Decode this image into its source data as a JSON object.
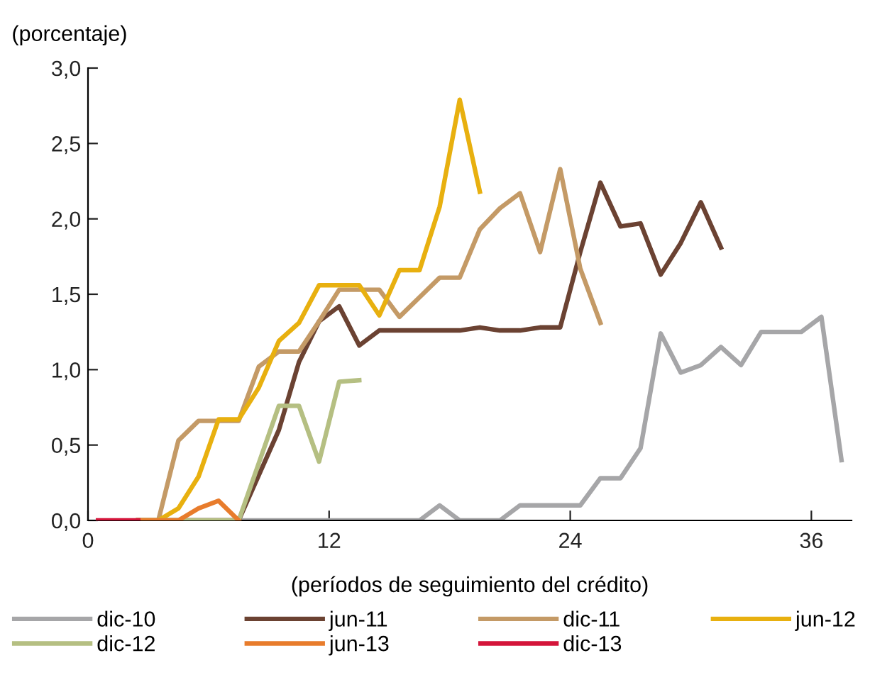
{
  "chart_data": {
    "type": "line",
    "ylabel": "(porcentaje)",
    "xlabel": "(períodos de seguimiento del crédito)",
    "x": [
      0.5,
      1.5,
      2.5,
      3.5,
      4.5,
      5.5,
      6.5,
      7.5,
      8.5,
      9.5,
      10.5,
      11.5,
      12.5,
      13.5,
      14.5,
      15.5,
      16.5,
      17.5,
      18.5,
      19.5,
      20.5,
      21.5,
      22.5,
      23.5,
      24.5,
      25.5,
      26.5,
      27.5,
      28.5,
      29.5,
      30.5,
      31.5,
      32.5,
      33.5,
      34.5,
      35.5,
      36.5,
      37.5
    ],
    "xlim": [
      0,
      38
    ],
    "xticks": [
      0,
      12,
      24,
      36
    ],
    "ylim": [
      0,
      3
    ],
    "yticks": [
      {
        "value": 0,
        "label": "0,0"
      },
      {
        "value": 0.5,
        "label": "0,5"
      },
      {
        "value": 1,
        "label": "1,0"
      },
      {
        "value": 1.5,
        "label": "1,5"
      },
      {
        "value": 2,
        "label": "2,0"
      },
      {
        "value": 2.5,
        "label": "2,5"
      },
      {
        "value": 3,
        "label": "3,0"
      }
    ],
    "grid": false,
    "legend": "bottom",
    "line_style": "solid",
    "marker": "none",
    "series": [
      {
        "name": "dic-10",
        "color": "#a6a6a8",
        "values": [
          null,
          null,
          0,
          0,
          0,
          0,
          0,
          0,
          0,
          0,
          0,
          0,
          0,
          0,
          0,
          0,
          0,
          0.1,
          0,
          0,
          0,
          0.1,
          0.1,
          0.1,
          0.1,
          0.28,
          0.28,
          0.48,
          1.24,
          0.98,
          1.03,
          1.15,
          1.03,
          1.25,
          1.25,
          1.25,
          1.35,
          0.4
        ]
      },
      {
        "name": "jun-11",
        "color": "#6b4232",
        "values": [
          null,
          null,
          0,
          0,
          0,
          0,
          0,
          0,
          0.3,
          0.6,
          1.05,
          1.32,
          1.42,
          1.16,
          1.26,
          1.26,
          1.26,
          1.26,
          1.26,
          1.28,
          1.26,
          1.26,
          1.28,
          1.28,
          1.78,
          2.24,
          1.95,
          1.97,
          1.63,
          1.84,
          2.11,
          1.81,
          null,
          null,
          null,
          null,
          null,
          null
        ]
      },
      {
        "name": "dic-11",
        "color": "#c49a66",
        "values": [
          null,
          null,
          0,
          0,
          0.53,
          0.66,
          0.66,
          0.66,
          1.02,
          1.12,
          1.12,
          1.32,
          1.53,
          1.53,
          1.53,
          1.35,
          1.48,
          1.61,
          1.61,
          1.93,
          2.07,
          2.17,
          1.78,
          2.33,
          1.67,
          1.31,
          null,
          null,
          null,
          null,
          null,
          null,
          null,
          null,
          null,
          null,
          null,
          null
        ]
      },
      {
        "name": "jun-12",
        "color": "#e8b00f",
        "values": [
          null,
          null,
          0,
          0,
          0.08,
          0.29,
          0.67,
          0.67,
          0.88,
          1.19,
          1.31,
          1.56,
          1.56,
          1.56,
          1.36,
          1.66,
          1.66,
          2.08,
          2.79,
          2.18,
          null,
          null,
          null,
          null,
          null,
          null,
          null,
          null,
          null,
          null,
          null,
          null,
          null,
          null,
          null,
          null,
          null,
          null
        ]
      },
      {
        "name": "dic-12",
        "color": "#b5bf82",
        "values": [
          null,
          null,
          0,
          0,
          0,
          0,
          0,
          0,
          0.38,
          0.76,
          0.76,
          0.39,
          0.92,
          0.93,
          null,
          null,
          null,
          null,
          null,
          null,
          null,
          null,
          null,
          null,
          null,
          null,
          null,
          null,
          null,
          null,
          null,
          null,
          null,
          null,
          null,
          null,
          null,
          null
        ]
      },
      {
        "name": "jun-13",
        "color": "#e87c2c",
        "values": [
          null,
          null,
          0,
          0,
          0,
          0.08,
          0.13,
          0,
          null,
          null,
          null,
          null,
          null,
          null,
          null,
          null,
          null,
          null,
          null,
          null,
          null,
          null,
          null,
          null,
          null,
          null,
          null,
          null,
          null,
          null,
          null,
          null,
          null,
          null,
          null,
          null,
          null,
          null
        ]
      },
      {
        "name": "dic-13",
        "color": "#d4153a",
        "values": [
          0,
          0,
          0,
          null,
          null,
          null,
          null,
          null,
          null,
          null,
          null,
          null,
          null,
          null,
          null,
          null,
          null,
          null,
          null,
          null,
          null,
          null,
          null,
          null,
          null,
          null,
          null,
          null,
          null,
          null,
          null,
          null,
          null,
          null,
          null,
          null,
          null,
          null
        ]
      }
    ]
  }
}
